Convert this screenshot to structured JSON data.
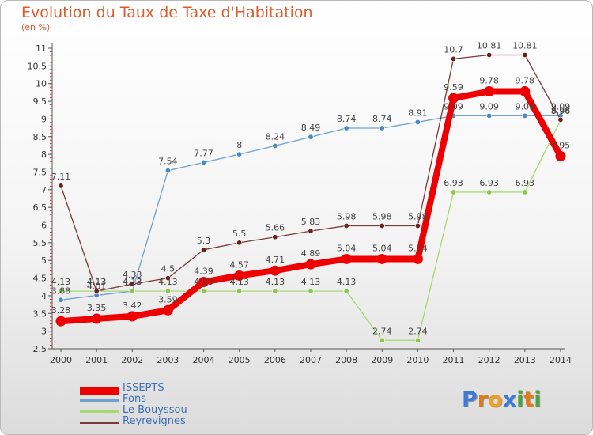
{
  "title": "Evolution du Taux de Taxe d'Habitation",
  "subtitle": "(en %)",
  "brand": {
    "letters": [
      "P",
      "r",
      "o",
      "x",
      "i",
      "t",
      "i"
    ],
    "colors": [
      "#3a7bd5",
      "#e07a1a",
      "#f0a020",
      "#3a7bd5",
      "#4aa53a",
      "#e07a1a",
      "#4aa53a"
    ]
  },
  "chart_data": {
    "type": "line",
    "title": "Evolution du Taux de Taxe d'Habitation",
    "ylabel": "(en %)",
    "xlabel": "",
    "ylim": [
      2.5,
      11
    ],
    "x": [
      "2000",
      "2001",
      "2002",
      "2003",
      "2004",
      "2005",
      "2006",
      "2007",
      "2008",
      "2009",
      "2010",
      "2011",
      "2012",
      "2013",
      "2014"
    ],
    "yticks": [
      "2.5",
      "3",
      "3.5",
      "4",
      "4.5",
      "5",
      "5.5",
      "6",
      "6.5",
      "7",
      "7.5",
      "8",
      "8.5",
      "9",
      "9.5",
      "10",
      "10.5",
      "11"
    ],
    "grid": false,
    "legend_position": "bottom-left",
    "series": [
      {
        "name": "Fons",
        "color": "#6fa1cc",
        "marker": "#4a8ac4",
        "values": [
          3.88,
          4.01,
          4.13,
          7.54,
          7.77,
          8,
          8.24,
          8.49,
          8.74,
          8.74,
          8.91,
          9.09,
          9.09,
          9.09,
          9.09
        ],
        "labels": [
          "3.88",
          "4.01",
          "4.13",
          "7.54",
          "7.77",
          "8",
          "8.24",
          "8.49",
          "8.74",
          "8.74",
          "8.91",
          "9.09",
          "9.09",
          "9.09",
          "9.09"
        ]
      },
      {
        "name": "Le Bouyssou",
        "color": "#a8d870",
        "marker": "#8ac84a",
        "values": [
          4.13,
          4.13,
          4.13,
          4.13,
          4.13,
          4.13,
          4.13,
          4.13,
          4.13,
          2.74,
          2.74,
          6.93,
          6.93,
          6.93,
          8.96
        ],
        "labels": [
          "4.13",
          "4.13",
          "4.13",
          "4.13",
          "4.13",
          "4.13",
          "4.13",
          "4.13",
          "4.13",
          "2.74",
          "2.74",
          "6.93",
          "6.93",
          "6.93",
          "8.96"
        ]
      },
      {
        "name": "Reyrevignes",
        "color": "#7a3a3a",
        "marker": "#6a1e1e",
        "values": [
          7.11,
          4.13,
          4.33,
          4.5,
          5.3,
          5.5,
          5.66,
          5.83,
          5.98,
          5.98,
          5.98,
          10.7,
          10.81,
          10.81,
          8.98
        ],
        "labels": [
          "7.11",
          "4.13",
          "4.33",
          "4.5",
          "5.3",
          "5.5",
          "5.66",
          "5.83",
          "5.98",
          "5.98",
          "5.98",
          "10.7",
          "10.81",
          "10.81",
          "8.98"
        ]
      },
      {
        "name": "ISSEPTS",
        "color": "#ee0000",
        "marker": "#ee0000",
        "values": [
          3.28,
          3.35,
          3.42,
          3.59,
          4.39,
          4.57,
          4.71,
          4.89,
          5.04,
          5.04,
          5.04,
          9.59,
          9.78,
          9.78,
          7.95
        ],
        "labels": [
          "3.28",
          "3.35",
          "3.42",
          "3.59",
          "4.39",
          "4.57",
          "4.71",
          "4.89",
          "5.04",
          "5.04",
          "5.04",
          "9.59",
          "9.78",
          "9.78",
          "7.95"
        ]
      }
    ],
    "legend": [
      {
        "name": "ISSEPTS",
        "color": "#ee0000"
      },
      {
        "name": "Fons",
        "color": "#6fa1cc"
      },
      {
        "name": "Le Bouyssou",
        "color": "#a8d870"
      },
      {
        "name": "Reyrevignes",
        "color": "#7a3a3a"
      }
    ]
  }
}
